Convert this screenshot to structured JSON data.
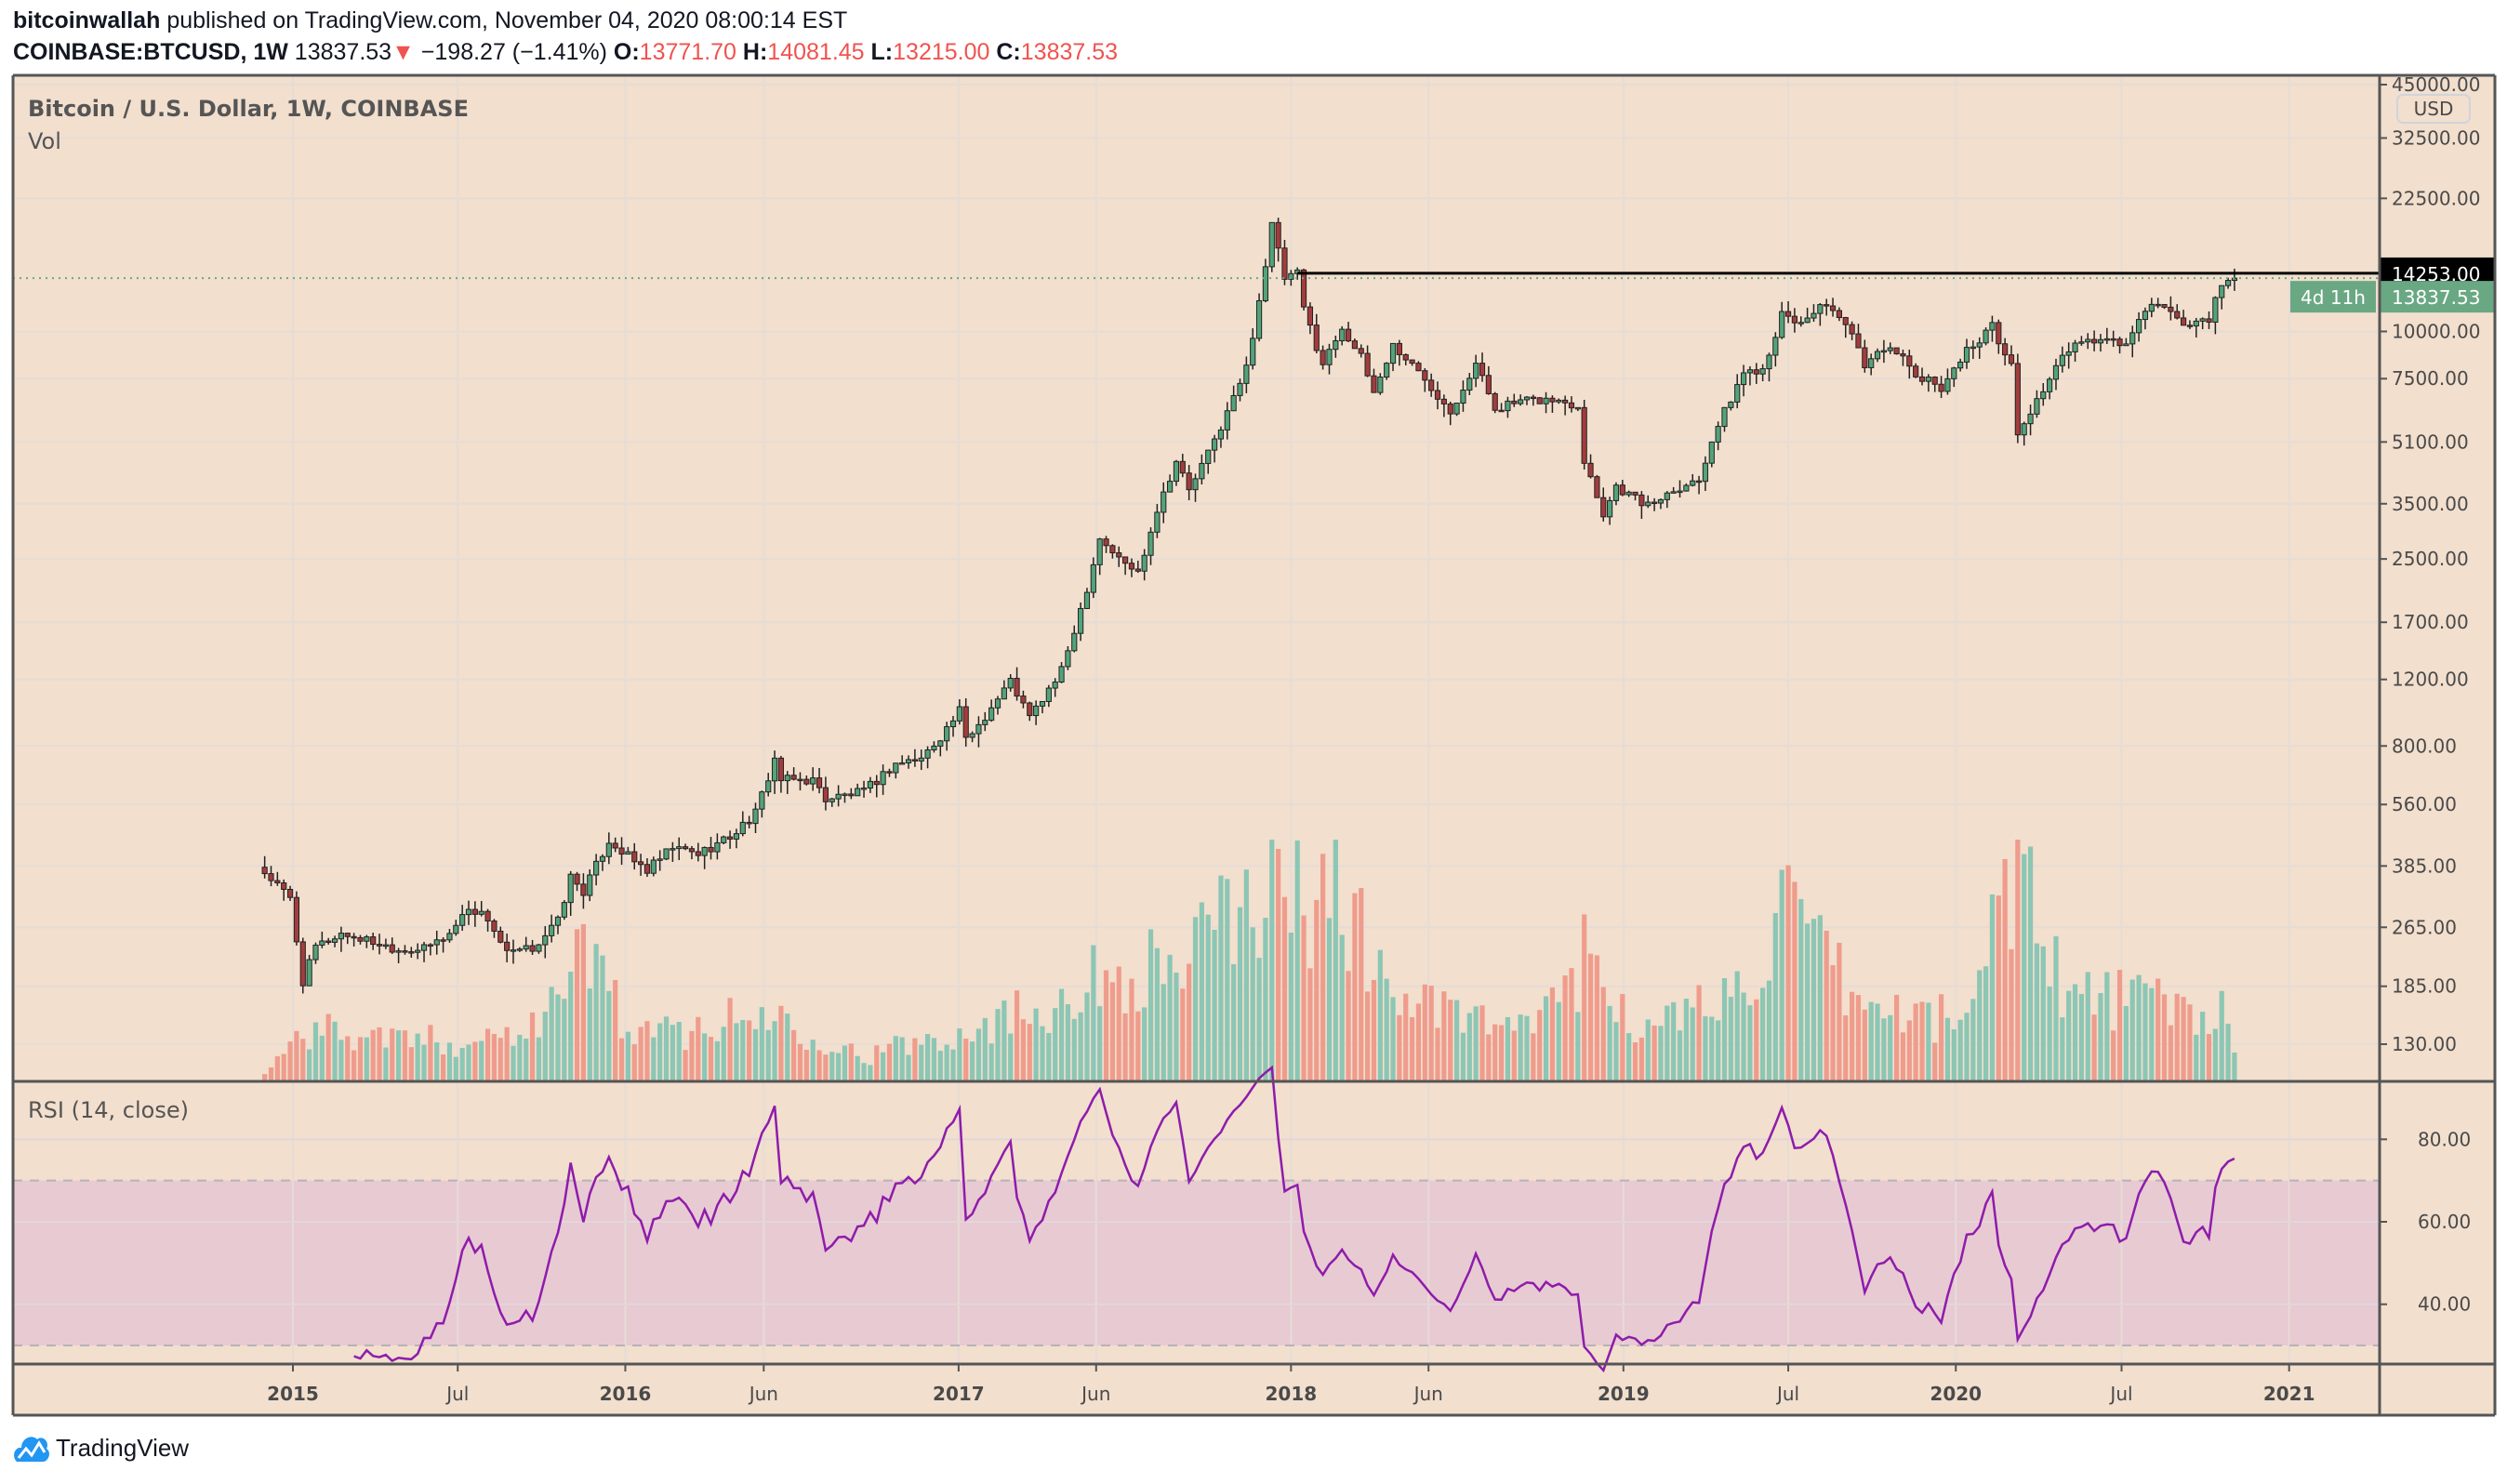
{
  "header": {
    "author": "bitcoinwallah",
    "published_text": "published on TradingView.com, November 04, 2020 08:00:14 EST",
    "symbol": "COINBASE:BTCUSD, 1W",
    "last": "13837.53",
    "change_arrow": "▼",
    "change": "−198.27 (−1.41%)",
    "o_label": "O:",
    "o": "13771.70",
    "h_label": "H:",
    "h": "14081.45",
    "l_label": "L:",
    "l": "13215.00",
    "c_label": "C:",
    "c": "13837.53"
  },
  "pane_titles": {
    "main": "Bitcoin / U.S. Dollar, 1W, COINBASE",
    "volume": "Vol",
    "rsi": "RSI (14, close)"
  },
  "footer": {
    "brand": "TradingView"
  },
  "colors": {
    "background": "#f2dfce",
    "up": "#53a37a",
    "down": "#a33c3c",
    "vol_up": "#8cc6b4",
    "vol_down": "#ef9c8c",
    "rsi_line": "#8e1cab",
    "rsi_band": "#e8cad3",
    "resistance": "#000000",
    "last_price": "#6aa884"
  },
  "chart_data": [
    {
      "type": "candlestick",
      "title": "Bitcoin / U.S. Dollar, 1W, COINBASE",
      "yscale": "log",
      "currency_label": "USD",
      "ylim": [
        105,
        47000
      ],
      "xlim": [
        "2014-09-15",
        "2021-05-20"
      ],
      "y_ticks": [
        "45000.00",
        "32500.00",
        "22500.00",
        "10000.00",
        "7500.00",
        "5100.00",
        "3500.00",
        "2500.00",
        "1700.00",
        "1200.00",
        "800.00",
        "560.00",
        "385.00",
        "265.00",
        "185.00",
        "130.00"
      ],
      "x_ticks": [
        [
          "2015-01-01",
          "2015"
        ],
        [
          "2015-07-01",
          "Jul"
        ],
        [
          "2016-01-01",
          "2016"
        ],
        [
          "2016-06-01",
          "Jun"
        ],
        [
          "2017-01-01",
          "2017"
        ],
        [
          "2017-06-01",
          "Jun"
        ],
        [
          "2018-01-01",
          "2018"
        ],
        [
          "2018-06-01",
          "Jun"
        ],
        [
          "2019-01-01",
          "2019"
        ],
        [
          "2019-07-01",
          "Jul"
        ],
        [
          "2020-01-01",
          "2020"
        ],
        [
          "2020-07-01",
          "Jul"
        ],
        [
          "2021-01-01",
          "2021"
        ]
      ],
      "first_week": "2014-12-01",
      "last_week": "2020-11-02",
      "close_anchors": [
        [
          "2014-12-01",
          370
        ],
        [
          "2014-12-29",
          315
        ],
        [
          "2015-01-12",
          190
        ],
        [
          "2015-01-26",
          235
        ],
        [
          "2015-02-23",
          255
        ],
        [
          "2015-03-23",
          245
        ],
        [
          "2015-04-27",
          232
        ],
        [
          "2015-05-25",
          232
        ],
        [
          "2015-06-22",
          255
        ],
        [
          "2015-07-13",
          300
        ],
        [
          "2015-08-03",
          280
        ],
        [
          "2015-08-24",
          225
        ],
        [
          "2015-09-21",
          233
        ],
        [
          "2015-10-19",
          275
        ],
        [
          "2015-11-02",
          360
        ],
        [
          "2015-11-16",
          330
        ],
        [
          "2015-12-14",
          450
        ],
        [
          "2016-01-11",
          395
        ],
        [
          "2016-01-25",
          375
        ],
        [
          "2016-02-22",
          430
        ],
        [
          "2016-03-21",
          415
        ],
        [
          "2016-04-25",
          460
        ],
        [
          "2016-05-23",
          530
        ],
        [
          "2016-06-13",
          740
        ],
        [
          "2016-06-20",
          650
        ],
        [
          "2016-07-25",
          650
        ],
        [
          "2016-08-08",
          580
        ],
        [
          "2016-09-19",
          605
        ],
        [
          "2016-10-24",
          720
        ],
        [
          "2016-11-21",
          740
        ],
        [
          "2016-12-19",
          890
        ],
        [
          "2017-01-02",
          990
        ],
        [
          "2017-01-09",
          830
        ],
        [
          "2017-01-30",
          960
        ],
        [
          "2017-02-27",
          1190
        ],
        [
          "2017-03-20",
          950
        ],
        [
          "2017-04-24",
          1260
        ],
        [
          "2017-05-22",
          2100
        ],
        [
          "2017-06-05",
          2850
        ],
        [
          "2017-06-26",
          2500
        ],
        [
          "2017-07-17",
          2300
        ],
        [
          "2017-08-07",
          3400
        ],
        [
          "2017-08-28",
          4550
        ],
        [
          "2017-09-11",
          3800
        ],
        [
          "2017-10-02",
          4750
        ],
        [
          "2017-10-23",
          6100
        ],
        [
          "2017-11-13",
          8000
        ],
        [
          "2017-12-04",
          15000
        ],
        [
          "2017-12-11",
          19100
        ],
        [
          "2017-12-25",
          13800
        ],
        [
          "2018-01-08",
          14200
        ],
        [
          "2018-01-15",
          11500
        ],
        [
          "2018-02-05",
          8200
        ],
        [
          "2018-02-26",
          10300
        ],
        [
          "2018-03-19",
          8500
        ],
        [
          "2018-04-02",
          6900
        ],
        [
          "2018-04-23",
          9200
        ],
        [
          "2018-05-28",
          7500
        ],
        [
          "2018-06-25",
          6200
        ],
        [
          "2018-07-23",
          8200
        ],
        [
          "2018-08-13",
          6300
        ],
        [
          "2018-09-10",
          6500
        ],
        [
          "2018-10-08",
          6600
        ],
        [
          "2018-11-12",
          6400
        ],
        [
          "2018-11-19",
          4600
        ],
        [
          "2018-12-10",
          3300
        ],
        [
          "2018-12-24",
          3900
        ],
        [
          "2019-01-28",
          3450
        ],
        [
          "2019-02-25",
          3850
        ],
        [
          "2019-03-25",
          4050
        ],
        [
          "2019-04-08",
          5200
        ],
        [
          "2019-05-13",
          7800
        ],
        [
          "2019-06-03",
          8000
        ],
        [
          "2019-06-24",
          11000
        ],
        [
          "2019-07-15",
          10500
        ],
        [
          "2019-08-05",
          11800
        ],
        [
          "2019-09-02",
          10400
        ],
        [
          "2019-09-23",
          8200
        ],
        [
          "2019-10-21",
          9300
        ],
        [
          "2019-11-18",
          7600
        ],
        [
          "2019-12-16",
          7150
        ],
        [
          "2020-01-13",
          8900
        ],
        [
          "2020-02-10",
          10300
        ],
        [
          "2020-03-02",
          8100
        ],
        [
          "2020-03-09",
          5300
        ],
        [
          "2020-03-30",
          6600
        ],
        [
          "2020-05-04",
          9000
        ],
        [
          "2020-06-01",
          9500
        ],
        [
          "2020-07-06",
          9250
        ],
        [
          "2020-07-27",
          11300
        ],
        [
          "2020-08-17",
          11800
        ],
        [
          "2020-09-07",
          10300
        ],
        [
          "2020-10-05",
          10900
        ],
        [
          "2020-10-19",
          13100
        ],
        [
          "2020-11-02",
          13837.53
        ]
      ],
      "volume_anchors": [
        [
          "2014-12-01",
          3
        ],
        [
          "2015-01-12",
          22
        ],
        [
          "2015-02-23",
          20
        ],
        [
          "2015-06-22",
          16
        ],
        [
          "2015-08-24",
          20
        ],
        [
          "2015-11-02",
          38
        ],
        [
          "2015-11-16",
          60
        ],
        [
          "2016-01-11",
          18
        ],
        [
          "2016-06-13",
          28
        ],
        [
          "2016-09-19",
          10
        ],
        [
          "2017-01-09",
          22
        ],
        [
          "2017-03-20",
          30
        ],
        [
          "2017-06-05",
          42
        ],
        [
          "2017-09-11",
          50
        ],
        [
          "2017-12-11",
          85
        ],
        [
          "2018-01-15",
          70
        ],
        [
          "2018-02-05",
          90
        ],
        [
          "2018-04-23",
          35
        ],
        [
          "2018-09-10",
          20
        ],
        [
          "2018-11-19",
          50
        ],
        [
          "2019-01-28",
          20
        ],
        [
          "2019-05-13",
          40
        ],
        [
          "2019-06-24",
          68
        ],
        [
          "2019-09-23",
          30
        ],
        [
          "2020-01-13",
          25
        ],
        [
          "2020-03-09",
          100
        ],
        [
          "2020-03-16",
          88
        ],
        [
          "2020-05-04",
          35
        ],
        [
          "2020-07-27",
          34
        ],
        [
          "2020-10-19",
          27
        ],
        [
          "2020-11-02",
          10
        ]
      ],
      "rsi": {
        "period": 14,
        "source": "close",
        "y_ticks": [
          "80.00",
          "60.00",
          "40.00"
        ],
        "upper_band": 70,
        "lower_band": 30,
        "ylim": [
          24,
          96
        ]
      },
      "annotations": {
        "resistance_level": "14253.00",
        "resistance_from": "2018-01-08",
        "last_price": "13837.53",
        "countdown": "4d 11h"
      }
    }
  ]
}
